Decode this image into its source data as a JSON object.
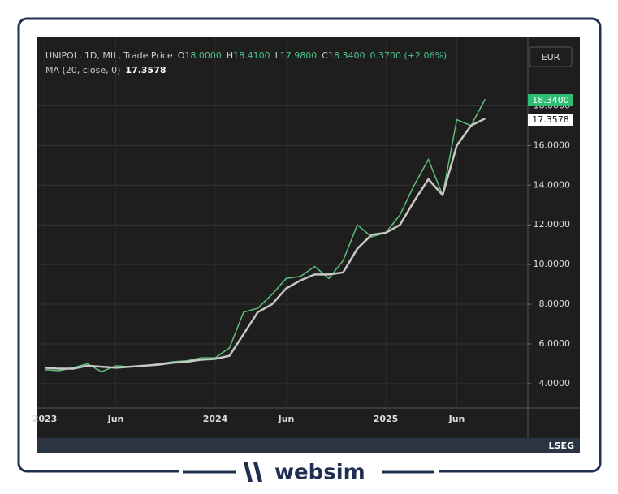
{
  "header": {
    "symbol": "UNIPOL, 1D, MIL, Trade Price",
    "open_label": "O",
    "open": "18.0000",
    "high_label": "H",
    "high": "18.4100",
    "low_label": "L",
    "low": "17.9800",
    "close_label": "C",
    "close": "18.3400",
    "change": "0.3700 (+2.06%)",
    "ma_label": "MA (20, close, 0)",
    "ma_value": "17.3578",
    "currency": "EUR"
  },
  "chart_data": {
    "type": "line",
    "categories": [
      "2023",
      null,
      null,
      null,
      null,
      "Jun",
      null,
      null,
      null,
      null,
      null,
      null,
      "2024",
      null,
      null,
      null,
      null,
      "Jun",
      null,
      null,
      null,
      null,
      null,
      null,
      "2025",
      null,
      null,
      null,
      null,
      "Jun",
      null,
      null
    ],
    "series": [
      {
        "color": "#5fbf7a",
        "values": [
          4.7,
          4.65,
          4.8,
          5.0,
          4.6,
          4.9,
          4.85,
          4.9,
          5.0,
          5.1,
          5.15,
          5.3,
          5.3,
          5.8,
          7.6,
          7.8,
          8.5,
          9.3,
          9.4,
          9.9,
          9.3,
          10.2,
          12.0,
          11.4,
          11.6,
          12.5,
          14.0,
          15.3,
          13.5,
          17.3,
          17.0,
          18.34
        ]
      },
      {
        "color": "#c8c8c8",
        "values": [
          4.8,
          4.75,
          4.75,
          4.9,
          4.85,
          4.8,
          4.85,
          4.9,
          4.95,
          5.05,
          5.1,
          5.2,
          5.25,
          5.4,
          6.5,
          7.6,
          8.0,
          8.8,
          9.2,
          9.5,
          9.5,
          9.6,
          10.8,
          11.5,
          11.6,
          12.0,
          13.2,
          14.3,
          13.5,
          16.0,
          17.0,
          17.36
        ]
      }
    ],
    "ylim": [
      2.77,
      21.45
    ],
    "yticks": [
      {
        "value": 4,
        "label": "4.0000"
      },
      {
        "value": 6,
        "label": "6.0000"
      },
      {
        "value": 8,
        "label": "8.0000"
      },
      {
        "value": 10,
        "label": "10.0000"
      },
      {
        "value": 12,
        "label": "12.0000"
      },
      {
        "value": 14,
        "label": "14.0000"
      },
      {
        "value": 16,
        "label": "16.0000"
      },
      {
        "value": 18,
        "label": "18.0000"
      }
    ],
    "grid": true
  },
  "footer": {
    "provider": "LSEG",
    "brand": "websim"
  }
}
